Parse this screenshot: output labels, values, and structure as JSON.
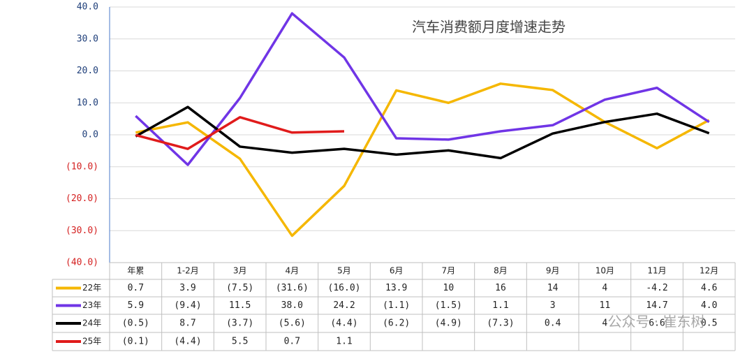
{
  "chart_data": {
    "type": "line",
    "title": "汽车消费额月度增速走势",
    "categories": [
      "年累",
      "1-2月",
      "3月",
      "4月",
      "5月",
      "6月",
      "7月",
      "8月",
      "9月",
      "10月",
      "11月",
      "12月"
    ],
    "series": [
      {
        "name": "22年",
        "color": "#f5b700",
        "values": [
          0.7,
          3.9,
          -7.5,
          -31.6,
          -16.0,
          13.9,
          10,
          16,
          14,
          4,
          -4.2,
          4.6
        ],
        "value_labels": [
          "0.7",
          "3.9",
          "(7.5)",
          "(31.6)",
          "(16.0)",
          "13.9",
          "10",
          "16",
          "14",
          "4",
          "-4.2",
          "4.6"
        ]
      },
      {
        "name": "23年",
        "color": "#7035e6",
        "values": [
          5.9,
          -9.4,
          11.5,
          38.0,
          24.2,
          -1.1,
          -1.5,
          1.1,
          3,
          11,
          14.7,
          4.0
        ],
        "value_labels": [
          "5.9",
          "(9.4)",
          "11.5",
          "38.0",
          "24.2",
          "(1.1)",
          "(1.5)",
          "1.1",
          "3",
          "11",
          "14.7",
          "4.0"
        ]
      },
      {
        "name": "24年",
        "color": "#000000",
        "values": [
          -0.5,
          8.7,
          -3.7,
          -5.6,
          -4.4,
          -6.2,
          -4.9,
          -7.3,
          0.4,
          4,
          6.6,
          0.5
        ],
        "value_labels": [
          "(0.5)",
          "8.7",
          "(3.7)",
          "(5.6)",
          "(4.4)",
          "(6.2)",
          "(4.9)",
          "(7.3)",
          "0.4",
          "4",
          "6.6",
          "0.5"
        ]
      },
      {
        "name": "25年",
        "color": "#e01b1b",
        "values": [
          -0.1,
          -4.4,
          5.5,
          0.7,
          1.1,
          null,
          null,
          null,
          null,
          null,
          null,
          null
        ],
        "value_labels": [
          "(0.1)",
          "(4.4)",
          "5.5",
          "0.7",
          "1.1",
          null,
          null,
          null,
          null,
          null,
          null,
          null
        ]
      }
    ],
    "ylim": [
      -40,
      40
    ],
    "yticks": [
      {
        "value": 40,
        "label": "40.0"
      },
      {
        "value": 30,
        "label": "30.0"
      },
      {
        "value": 20,
        "label": "20.0"
      },
      {
        "value": 10,
        "label": "10.0"
      },
      {
        "value": 0,
        "label": "0.0"
      },
      {
        "value": -10,
        "label": "(10.0)"
      },
      {
        "value": -20,
        "label": "(20.0)"
      },
      {
        "value": -30,
        "label": "(30.0)"
      },
      {
        "value": -40,
        "label": "(40.0)"
      }
    ],
    "grid": true,
    "tick_color": "#1f3f7a",
    "negative_tick_color": "#d42020",
    "watermark": "公众号 · 崔东树"
  }
}
